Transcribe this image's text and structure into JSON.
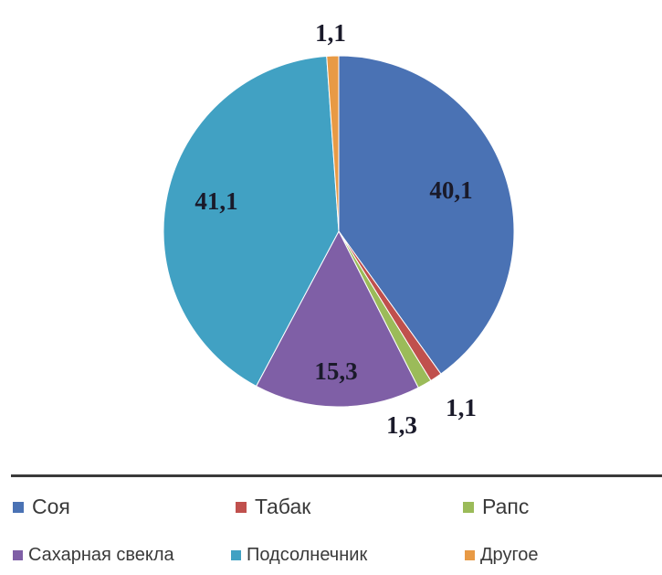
{
  "chart_data": {
    "type": "pie",
    "title": "",
    "slices": [
      {
        "name": "Соя",
        "value": 40.1,
        "label": "40,1",
        "color": "#4a72b4"
      },
      {
        "name": "Табак",
        "value": 1.1,
        "label": "1,1",
        "color": "#c0504d"
      },
      {
        "name": "Рапс",
        "value": 1.3,
        "label": "1,3",
        "color": "#9bbb59"
      },
      {
        "name": "Сахарная свекла",
        "value": 15.3,
        "label": "15,3",
        "color": "#7f5fa6"
      },
      {
        "name": "Подсолнечник",
        "value": 41.1,
        "label": "41,1",
        "color": "#41a1c3"
      },
      {
        "name": "Другое",
        "value": 1.1,
        "label": "1,1",
        "color": "#e89a45"
      }
    ],
    "start": "12 o'clock",
    "direction": "clockwise",
    "legend_position": "bottom"
  }
}
